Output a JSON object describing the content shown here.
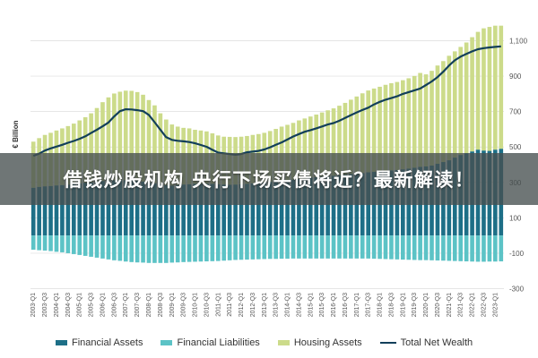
{
  "overlay": {
    "headline": "借钱炒股机构 央行下场买债将近？最新解读！"
  },
  "colors": {
    "financial_assets": "#1d6f87",
    "financial_liabilities": "#5cc3c6",
    "housing_assets": "#ccdb8a",
    "net_wealth": "#123f5a",
    "grid": "#dddddd"
  },
  "chart_data": {
    "type": "bar",
    "ylabel": "€ Billion",
    "ylim": [
      -300,
      1200
    ],
    "yticks": [
      -300,
      -100,
      100,
      300,
      500,
      700,
      900,
      1100
    ],
    "ytick_labels": [
      "-300",
      "-100",
      "100",
      "300",
      "500",
      "700",
      "900",
      "1,100"
    ],
    "grid": true,
    "legend_position": "bottom",
    "categories": [
      "2003-Q1",
      "2003-Q2",
      "2003-Q3",
      "2003-Q4",
      "2004-Q1",
      "2004-Q2",
      "2004-Q3",
      "2004-Q4",
      "2005-Q1",
      "2005-Q2",
      "2005-Q3",
      "2005-Q4",
      "2006-Q1",
      "2006-Q2",
      "2006-Q3",
      "2006-Q4",
      "2007-Q1",
      "2007-Q2",
      "2007-Q3",
      "2007-Q4",
      "2008-Q1",
      "2008-Q2",
      "2008-Q3",
      "2008-Q4",
      "2009-Q1",
      "2009-Q2",
      "2009-Q3",
      "2009-Q4",
      "2010-Q1",
      "2010-Q2",
      "2010-Q3",
      "2010-Q4",
      "2011-Q1",
      "2011-Q2",
      "2011-Q3",
      "2011-Q4",
      "2012-Q1",
      "2012-Q2",
      "2012-Q3",
      "2012-Q4",
      "2013-Q1",
      "2013-Q2",
      "2013-Q3",
      "2013-Q4",
      "2014-Q1",
      "2014-Q2",
      "2014-Q3",
      "2014-Q4",
      "2015-Q1",
      "2015-Q2",
      "2015-Q3",
      "2015-Q4",
      "2016-Q1",
      "2016-Q2",
      "2016-Q3",
      "2016-Q4",
      "2017-Q1",
      "2017-Q2",
      "2017-Q3",
      "2017-Q4",
      "2018-Q1",
      "2018-Q2",
      "2018-Q3",
      "2018-Q4",
      "2019-Q1",
      "2019-Q2",
      "2019-Q3",
      "2019-Q4",
      "2020-Q1",
      "2020-Q2",
      "2020-Q3",
      "2020-Q4",
      "2021-Q1",
      "2021-Q2",
      "2021-Q3",
      "2021-Q4",
      "2022-Q1",
      "2022-Q2",
      "2022-Q3",
      "2022-Q4",
      "2023-Q1",
      "2023-Q2"
    ],
    "series": [
      {
        "name": "Financial Assets",
        "stack": "positive",
        "values": [
          270,
          275,
          278,
          280,
          283,
          285,
          288,
          292,
          295,
          298,
          300,
          305,
          308,
          310,
          312,
          312,
          313,
          312,
          310,
          305,
          300,
          295,
          290,
          285,
          282,
          285,
          288,
          290,
          292,
          293,
          293,
          292,
          290,
          288,
          287,
          288,
          290,
          292,
          295,
          298,
          300,
          303,
          307,
          310,
          313,
          316,
          320,
          323,
          327,
          330,
          333,
          335,
          338,
          341,
          344,
          347,
          350,
          353,
          357,
          360,
          363,
          366,
          368,
          370,
          374,
          378,
          383,
          388,
          390,
          395,
          405,
          415,
          425,
          440,
          455,
          465,
          475,
          485,
          480,
          478,
          485,
          490
        ]
      },
      {
        "name": "Housing Assets",
        "stack": "positive",
        "values": [
          260,
          275,
          290,
          300,
          310,
          320,
          330,
          340,
          355,
          370,
          390,
          415,
          445,
          470,
          490,
          500,
          505,
          505,
          500,
          490,
          465,
          440,
          400,
          370,
          345,
          330,
          320,
          315,
          305,
          300,
          295,
          285,
          275,
          270,
          270,
          268,
          268,
          270,
          273,
          275,
          280,
          287,
          295,
          305,
          312,
          320,
          330,
          338,
          345,
          353,
          362,
          372,
          380,
          392,
          405,
          420,
          435,
          450,
          462,
          470,
          477,
          485,
          492,
          497,
          503,
          510,
          518,
          530,
          520,
          535,
          555,
          570,
          590,
          600,
          610,
          625,
          645,
          665,
          690,
          700,
          700,
          695
        ]
      },
      {
        "name": "Financial Liabilities",
        "stack": "negative",
        "values": [
          -80,
          -83,
          -85,
          -88,
          -92,
          -95,
          -100,
          -105,
          -110,
          -115,
          -120,
          -125,
          -130,
          -135,
          -140,
          -143,
          -147,
          -150,
          -152,
          -153,
          -155,
          -155,
          -155,
          -155,
          -153,
          -152,
          -150,
          -149,
          -148,
          -147,
          -146,
          -145,
          -144,
          -142,
          -140,
          -138,
          -137,
          -136,
          -135,
          -134,
          -133,
          -132,
          -132,
          -131,
          -131,
          -130,
          -130,
          -130,
          -130,
          -130,
          -130,
          -130,
          -130,
          -130,
          -130,
          -130,
          -130,
          -130,
          -130,
          -131,
          -132,
          -133,
          -134,
          -135,
          -136,
          -137,
          -138,
          -139,
          -139,
          -140,
          -141,
          -142,
          -143,
          -144,
          -145,
          -146,
          -147,
          -148,
          -148,
          -147,
          -147,
          -146
        ]
      },
      {
        "name": "Total Net Wealth",
        "type": "line",
        "values": [
          450,
          462,
          480,
          492,
          502,
          512,
          524,
          534,
          546,
          560,
          579,
          597,
          617,
          638,
          673,
          702,
          713,
          712,
          708,
          702,
          681,
          640,
          597,
          555,
          540,
          535,
          532,
          528,
          521,
          511,
          501,
          484,
          468,
          464,
          460,
          456,
          460,
          470,
          474,
          478,
          486,
          498,
          512,
          526,
          542,
          559,
          573,
          586,
          595,
          605,
          616,
          627,
          635,
          648,
          664,
          680,
          695,
          709,
          722,
          740,
          755,
          767,
          776,
          786,
          800,
          810,
          820,
          830,
          850,
          870,
          895,
          925,
          960,
          990,
          1010,
          1025,
          1040,
          1052,
          1058,
          1062,
          1065,
          1068
        ]
      }
    ]
  }
}
